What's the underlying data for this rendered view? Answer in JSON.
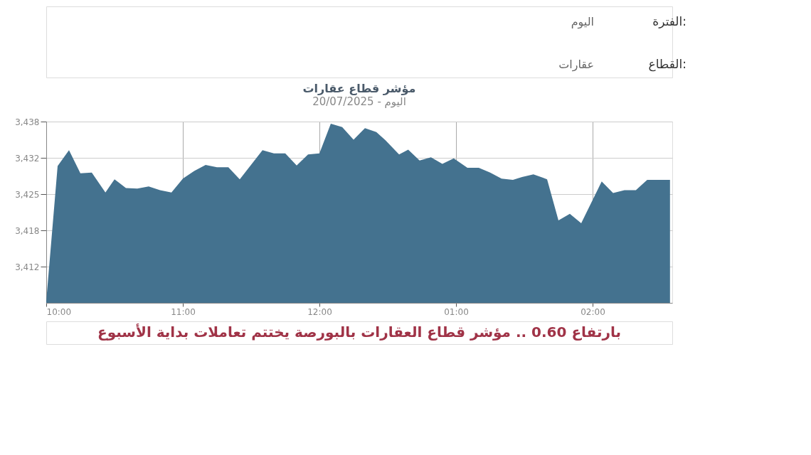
{
  "chart_data": {
    "type": "area",
    "title": "مؤشر قطاع عقارات",
    "subtitle": "اليوم - 20/07/2025",
    "color": "#44728f",
    "x": [
      "2025-07-20T10:00",
      "2025-07-20T10:05",
      "2025-07-20T10:10",
      "2025-07-20T10:15",
      "2025-07-20T10:20",
      "2025-07-20T10:26",
      "2025-07-20T10:30",
      "2025-07-20T10:35",
      "2025-07-20T10:40",
      "2025-07-20T10:45",
      "2025-07-20T10:50",
      "2025-07-20T10:55",
      "2025-07-20T11:00",
      "2025-07-20T11:05",
      "2025-07-20T11:10",
      "2025-07-20T11:15",
      "2025-07-20T11:20",
      "2025-07-20T11:25",
      "2025-07-20T11:35",
      "2025-07-20T11:40",
      "2025-07-20T11:45",
      "2025-07-20T11:50",
      "2025-07-20T11:55",
      "2025-07-20T12:00",
      "2025-07-20T12:05",
      "2025-07-20T12:10",
      "2025-07-20T12:15",
      "2025-07-20T12:20",
      "2025-07-20T12:25",
      "2025-07-20T12:29",
      "2025-07-20T12:35",
      "2025-07-20T12:39",
      "2025-07-20T12:44",
      "2025-07-20T12:49",
      "2025-07-20T12:54",
      "2025-07-20T12:59",
      "2025-07-20T13:05",
      "2025-07-20T13:10",
      "2025-07-20T13:15",
      "2025-07-20T13:20",
      "2025-07-20T13:25",
      "2025-07-20T13:29",
      "2025-07-20T13:34",
      "2025-07-20T13:40",
      "2025-07-20T13:45",
      "2025-07-20T13:50",
      "2025-07-20T13:55",
      "2025-07-20T14:04",
      "2025-07-20T14:09",
      "2025-07-20T14:14",
      "2025-07-20T14:19",
      "2025-07-20T14:24",
      "2025-07-20T14:34"
    ],
    "values": [
      3405.5,
      3430.1,
      3433.0,
      3428.8,
      3428.9,
      3425.3,
      3427.7,
      3426.1,
      3426.0,
      3426.4,
      3425.7,
      3425.3,
      3427.8,
      3429.2,
      3430.3,
      3429.9,
      3429.9,
      3427.7,
      3433.0,
      3432.4,
      3432.4,
      3430.2,
      3432.2,
      3432.4,
      3437.8,
      3437.2,
      3434.9,
      3437.0,
      3436.3,
      3434.8,
      3432.2,
      3433.1,
      3431.1,
      3431.7,
      3430.5,
      3431.5,
      3429.8,
      3429.8,
      3428.9,
      3427.8,
      3427.6,
      3428.1,
      3428.6,
      3427.7,
      3420.2,
      3421.4,
      3419.7,
      3427.3,
      3425.2,
      3425.7,
      3425.7,
      3427.6,
      3427.6
    ],
    "xlim": [
      "2025-07-20T10:00",
      "2025-07-20T14:35"
    ],
    "xticks": [
      {
        "value": "2025-07-20T10:00",
        "label": "10:00"
      },
      {
        "value": "2025-07-20T11:00",
        "label": "11:00"
      },
      {
        "value": "2025-07-20T12:00",
        "label": "12:00"
      },
      {
        "value": "2025-07-20T13:00",
        "label": "01:00"
      },
      {
        "value": "2025-07-20T14:00",
        "label": "02:00"
      }
    ],
    "ylim": [
      3405.2,
      3438.2
    ],
    "yticks": [
      {
        "value": 3411.8,
        "label": "3,412"
      },
      {
        "value": 3418.4,
        "label": "3,418"
      },
      {
        "value": 3425.0,
        "label": "3,425"
      },
      {
        "value": 3431.6,
        "label": "3,432"
      },
      {
        "value": 3438.2,
        "label": "3,438"
      }
    ],
    "grid": true,
    "annotations": [
      "الفترة:",
      "اليوم",
      "القطاع:",
      "عقارات",
      "بارتفاع 0.60 .. مؤشر قطاع العقارات بالبورصة يختتم تعاملات بداية الأسبوع"
    ]
  }
}
